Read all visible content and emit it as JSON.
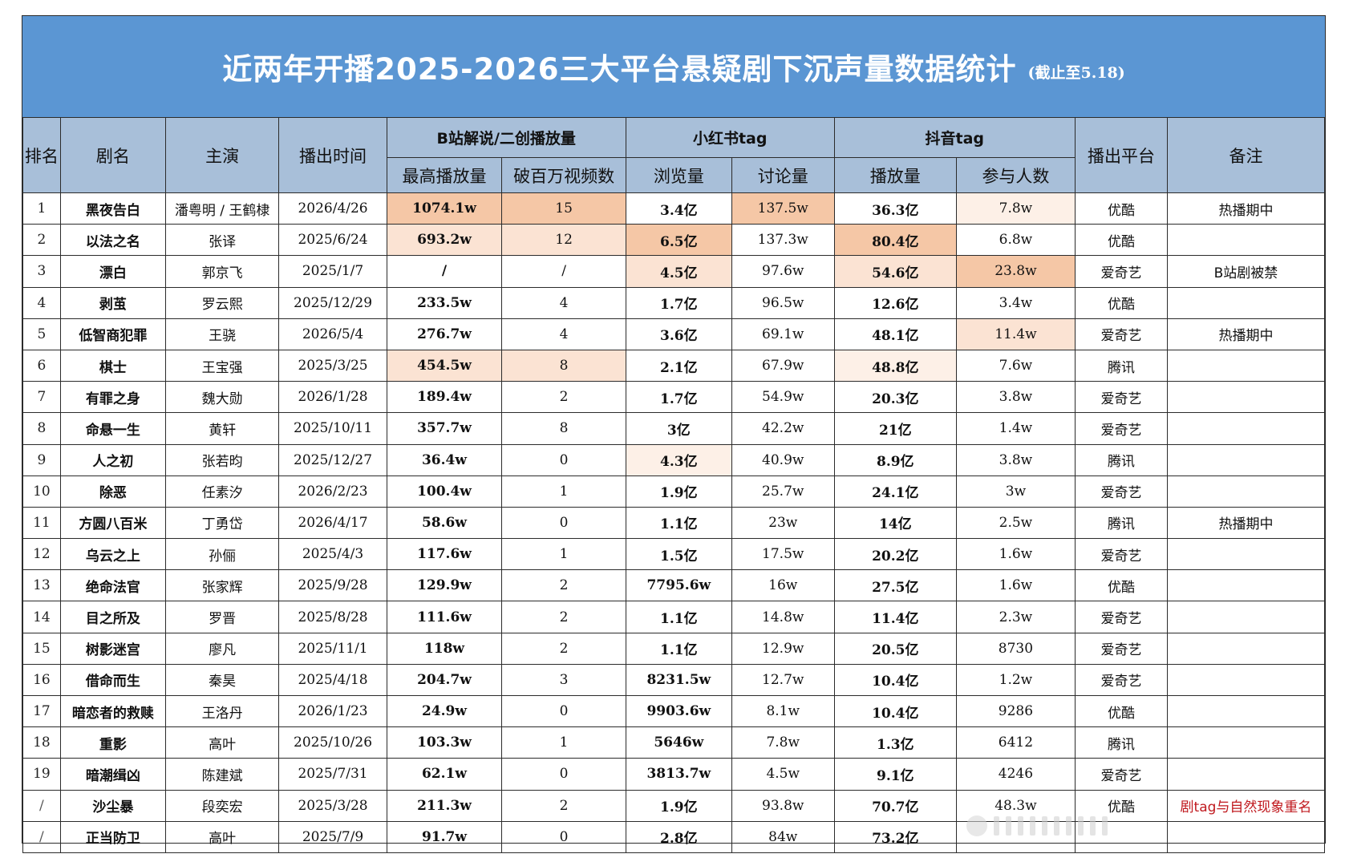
{
  "title": {
    "main": "近两年开播2025-2026三大平台悬疑剧下沉声量数据统计",
    "note": "(截止至5.18)"
  },
  "headers": {
    "rank": "排名",
    "name": "剧名",
    "actor": "主演",
    "date": "播出时间",
    "group_bili": "B站解说/二创播放量",
    "group_xhs": "小红书tag",
    "group_dy": "抖音tag",
    "platform": "播出平台",
    "note": "备注",
    "bili_max": "最高播放量",
    "bili_million": "破百万视频数",
    "xhs_views": "浏览量",
    "xhs_discuss": "讨论量",
    "dy_plays": "播放量",
    "dy_people": "参与人数"
  },
  "rows": [
    {
      "rank": "1",
      "name": "黑夜告白",
      "actor": "潘粤明 / 王鹤棣",
      "date": "2026/4/26",
      "bili_max": "1074.1w",
      "bili_million": "15",
      "xhs_views": "3.4亿",
      "xhs_discuss": "137.5w",
      "dy_plays": "36.3亿",
      "dy_people": "7.8w",
      "platform": "优酷",
      "note": "热播期中"
    },
    {
      "rank": "2",
      "name": "以法之名",
      "actor": "张译",
      "date": "2025/6/24",
      "bili_max": "693.2w",
      "bili_million": "12",
      "xhs_views": "6.5亿",
      "xhs_discuss": "137.3w",
      "dy_plays": "80.4亿",
      "dy_people": "6.8w",
      "platform": "优酷",
      "note": ""
    },
    {
      "rank": "3",
      "name": "漂白",
      "actor": "郭京飞",
      "date": "2025/1/7",
      "bili_max": "/",
      "bili_million": "/",
      "xhs_views": "4.5亿",
      "xhs_discuss": "97.6w",
      "dy_plays": "54.6亿",
      "dy_people": "23.8w",
      "platform": "爱奇艺",
      "note": "B站剧被禁"
    },
    {
      "rank": "4",
      "name": "剥茧",
      "actor": "罗云熙",
      "date": "2025/12/29",
      "bili_max": "233.5w",
      "bili_million": "4",
      "xhs_views": "1.7亿",
      "xhs_discuss": "96.5w",
      "dy_plays": "12.6亿",
      "dy_people": "3.4w",
      "platform": "优酷",
      "note": ""
    },
    {
      "rank": "5",
      "name": "低智商犯罪",
      "actor": "王骁",
      "date": "2026/5/4",
      "bili_max": "276.7w",
      "bili_million": "4",
      "xhs_views": "3.6亿",
      "xhs_discuss": "69.1w",
      "dy_plays": "48.1亿",
      "dy_people": "11.4w",
      "platform": "爱奇艺",
      "note": "热播期中"
    },
    {
      "rank": "6",
      "name": "棋士",
      "actor": "王宝强",
      "date": "2025/3/25",
      "bili_max": "454.5w",
      "bili_million": "8",
      "xhs_views": "2.1亿",
      "xhs_discuss": "67.9w",
      "dy_plays": "48.8亿",
      "dy_people": "7.6w",
      "platform": "腾讯",
      "note": ""
    },
    {
      "rank": "7",
      "name": "有罪之身",
      "actor": "魏大勋",
      "date": "2026/1/28",
      "bili_max": "189.4w",
      "bili_million": "2",
      "xhs_views": "1.7亿",
      "xhs_discuss": "54.9w",
      "dy_plays": "20.3亿",
      "dy_people": "3.8w",
      "platform": "爱奇艺",
      "note": ""
    },
    {
      "rank": "8",
      "name": "命悬一生",
      "actor": "黄轩",
      "date": "2025/10/11",
      "bili_max": "357.7w",
      "bili_million": "8",
      "xhs_views": "3亿",
      "xhs_discuss": "42.2w",
      "dy_plays": "21亿",
      "dy_people": "1.4w",
      "platform": "爱奇艺",
      "note": ""
    },
    {
      "rank": "9",
      "name": "人之初",
      "actor": "张若昀",
      "date": "2025/12/27",
      "bili_max": "36.4w",
      "bili_million": "0",
      "xhs_views": "4.3亿",
      "xhs_discuss": "40.9w",
      "dy_plays": "8.9亿",
      "dy_people": "3.8w",
      "platform": "腾讯",
      "note": ""
    },
    {
      "rank": "10",
      "name": "除恶",
      "actor": "任素汐",
      "date": "2026/2/23",
      "bili_max": "100.4w",
      "bili_million": "1",
      "xhs_views": "1.9亿",
      "xhs_discuss": "25.7w",
      "dy_plays": "24.1亿",
      "dy_people": "3w",
      "platform": "爱奇艺",
      "note": ""
    },
    {
      "rank": "11",
      "name": "方圆八百米",
      "actor": "丁勇岱",
      "date": "2026/4/17",
      "bili_max": "58.6w",
      "bili_million": "0",
      "xhs_views": "1.1亿",
      "xhs_discuss": "23w",
      "dy_plays": "14亿",
      "dy_people": "2.5w",
      "platform": "腾讯",
      "note": "热播期中"
    },
    {
      "rank": "12",
      "name": "乌云之上",
      "actor": "孙俪",
      "date": "2025/4/3",
      "bili_max": "117.6w",
      "bili_million": "1",
      "xhs_views": "1.5亿",
      "xhs_discuss": "17.5w",
      "dy_plays": "20.2亿",
      "dy_people": "1.6w",
      "platform": "爱奇艺",
      "note": ""
    },
    {
      "rank": "13",
      "name": "绝命法官",
      "actor": "张家辉",
      "date": "2025/9/28",
      "bili_max": "129.9w",
      "bili_million": "2",
      "xhs_views": "7795.6w",
      "xhs_discuss": "16w",
      "dy_plays": "27.5亿",
      "dy_people": "1.6w",
      "platform": "优酷",
      "note": ""
    },
    {
      "rank": "14",
      "name": "目之所及",
      "actor": "罗晋",
      "date": "2025/8/28",
      "bili_max": "111.6w",
      "bili_million": "2",
      "xhs_views": "1.1亿",
      "xhs_discuss": "14.8w",
      "dy_plays": "11.4亿",
      "dy_people": "2.3w",
      "platform": "爱奇艺",
      "note": ""
    },
    {
      "rank": "15",
      "name": "树影迷宫",
      "actor": "廖凡",
      "date": "2025/11/1",
      "bili_max": "118w",
      "bili_million": "2",
      "xhs_views": "1.1亿",
      "xhs_discuss": "12.9w",
      "dy_plays": "20.5亿",
      "dy_people": "8730",
      "platform": "爱奇艺",
      "note": ""
    },
    {
      "rank": "16",
      "name": "借命而生",
      "actor": "秦昊",
      "date": "2025/4/18",
      "bili_max": "204.7w",
      "bili_million": "3",
      "xhs_views": "8231.5w",
      "xhs_discuss": "12.7w",
      "dy_plays": "10.4亿",
      "dy_people": "1.2w",
      "platform": "爱奇艺",
      "note": ""
    },
    {
      "rank": "17",
      "name": "暗恋者的救赎",
      "actor": "王洛丹",
      "date": "2026/1/23",
      "bili_max": "24.9w",
      "bili_million": "0",
      "xhs_views": "9903.6w",
      "xhs_discuss": "8.1w",
      "dy_plays": "10.4亿",
      "dy_people": "9286",
      "platform": "优酷",
      "note": ""
    },
    {
      "rank": "18",
      "name": "重影",
      "actor": "高叶",
      "date": "2025/10/26",
      "bili_max": "103.3w",
      "bili_million": "1",
      "xhs_views": "5646w",
      "xhs_discuss": "7.8w",
      "dy_plays": "1.3亿",
      "dy_people": "6412",
      "platform": "腾讯",
      "note": ""
    },
    {
      "rank": "19",
      "name": "暗潮缉凶",
      "actor": "陈建斌",
      "date": "2025/7/31",
      "bili_max": "62.1w",
      "bili_million": "0",
      "xhs_views": "3813.7w",
      "xhs_discuss": "4.5w",
      "dy_plays": "9.1亿",
      "dy_people": "4246",
      "platform": "爱奇艺",
      "note": ""
    },
    {
      "rank": "/",
      "name": "沙尘暴",
      "actor": "段奕宏",
      "date": "2025/3/28",
      "bili_max": "211.3w",
      "bili_million": "2",
      "xhs_views": "1.9亿",
      "xhs_discuss": "93.8w",
      "dy_plays": "70.7亿",
      "dy_people": "48.3w",
      "platform": "优酷",
      "note": "剧tag与自然现象重名"
    },
    {
      "rank": "/",
      "name": "正当防卫",
      "actor": "高叶",
      "date": "2025/7/9",
      "bili_max": "91.7w",
      "bili_million": "0",
      "xhs_views": "2.8亿",
      "xhs_discuss": "84w",
      "dy_plays": "73.2亿",
      "dy_people": "",
      "platform": "",
      "note": ""
    }
  ],
  "highlights": {
    "1": {
      "bili_max": "h1c",
      "bili_million": "h1c",
      "xhs_discuss": "h1c",
      "dy_people": "h3c"
    },
    "2": {
      "bili_max": "h2c",
      "bili_million": "h2c",
      "xhs_views": "h1c",
      "dy_plays": "h1c"
    },
    "3": {
      "xhs_views": "h2c",
      "dy_plays": "h2c",
      "dy_people": "h1c"
    },
    "5": {
      "dy_people": "h2c"
    },
    "6": {
      "bili_max": "h2c",
      "bili_million": "h2c",
      "dy_plays": "h3c"
    },
    "9": {
      "xhs_views": "h3c"
    }
  },
  "colors": {
    "title_bg": "#5b96d3",
    "header_bg": "#a8bfd9",
    "highlight_strong": "#f5c7a6",
    "highlight_medium": "#fbe3d3",
    "highlight_light": "#fdf0e7",
    "note_red": "#c0191e"
  }
}
